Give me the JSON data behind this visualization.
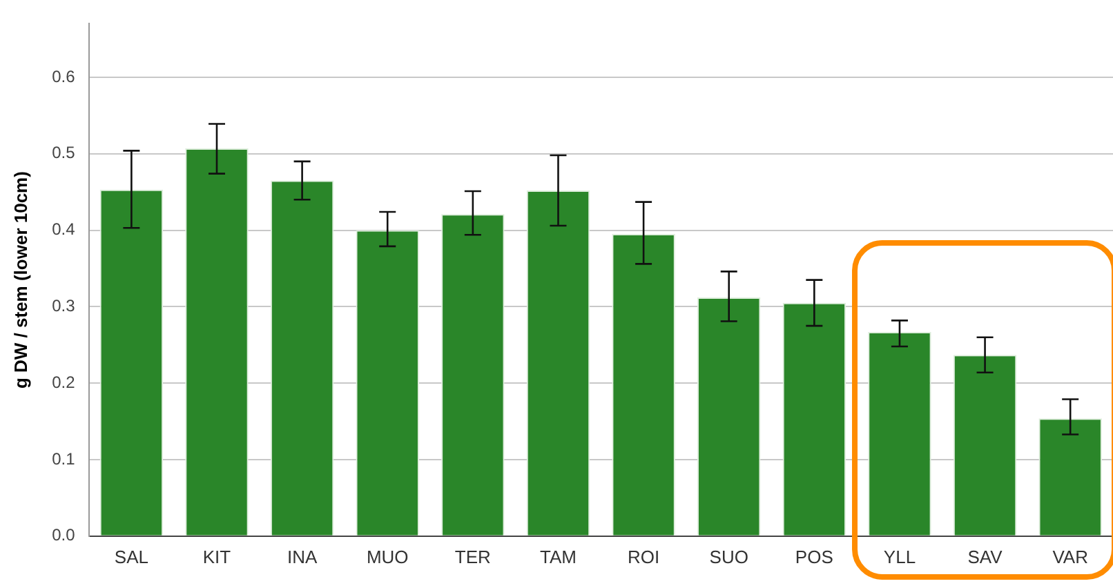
{
  "chart_data": {
    "type": "bar",
    "ylabel": "g DW / stem (lower 10cm)",
    "categories": [
      "SAL",
      "KIT",
      "INA",
      "MUO",
      "TER",
      "TAM",
      "ROI",
      "SUO",
      "POS",
      "YLL",
      "SAV",
      "VAR"
    ],
    "values": [
      0.453,
      0.507,
      0.465,
      0.4,
      0.421,
      0.452,
      0.395,
      0.312,
      0.305,
      0.267,
      0.237,
      0.154
    ],
    "errors": [
      [
        0.403,
        0.504
      ],
      [
        0.474,
        0.539
      ],
      [
        0.44,
        0.49
      ],
      [
        0.379,
        0.424
      ],
      [
        0.394,
        0.451
      ],
      [
        0.406,
        0.498
      ],
      [
        0.356,
        0.437
      ],
      [
        0.281,
        0.346
      ],
      [
        0.275,
        0.335
      ],
      [
        0.248,
        0.282
      ],
      [
        0.214,
        0.26
      ],
      [
        0.133,
        0.179
      ]
    ],
    "color": "#2a8629",
    "ylim": [
      0,
      0.67
    ],
    "yticks": [
      {
        "value": 0,
        "label": "0.0"
      },
      0.1,
      0.2,
      0.3,
      0.4,
      0.5,
      0.6
    ],
    "grid": "y",
    "legend": false
  }
}
